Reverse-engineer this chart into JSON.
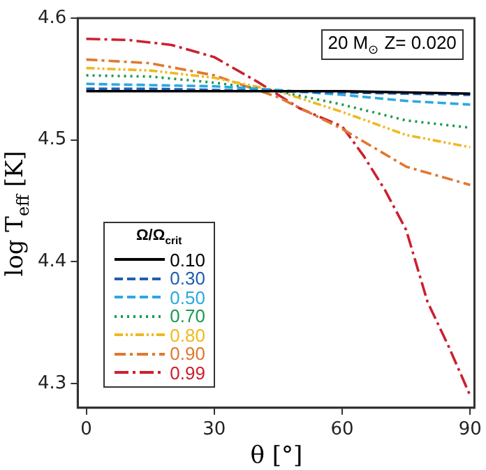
{
  "chart_data": {
    "type": "line",
    "xlabel": "θ [°]",
    "ylabel": "log T$_{eff}$ [K]",
    "legend_title": "Ω/Ω$_{crit}$",
    "legend": "bottom left",
    "annotations": [
      "20 M$_{⊙}$ Z= 0.020"
    ],
    "xlim": [
      -2,
      91
    ],
    "xticks": [
      0,
      30,
      60,
      90
    ],
    "ylim": [
      4.28,
      4.6
    ],
    "yticks": [
      4.3,
      4.4,
      4.5,
      4.6
    ],
    "grid": false,
    "marker": "none",
    "x": [
      0,
      15,
      30,
      45,
      60,
      75,
      90
    ],
    "series": [
      {
        "name": "0.10",
        "color": "#000000",
        "line_style": "solid",
        "values": [
          4.54,
          4.54,
          4.54,
          4.54,
          4.54,
          4.539,
          4.538
        ]
      },
      {
        "name": "0.30",
        "color": "#1f5fb0",
        "line_style": "dashed",
        "values": [
          4.542,
          4.542,
          4.541,
          4.54,
          4.539,
          4.538,
          4.537
        ]
      },
      {
        "name": "0.50",
        "color": "#29a9e0",
        "line_style": "dashed",
        "values": [
          4.546,
          4.545,
          4.544,
          4.541,
          4.537,
          4.532,
          4.529
        ]
      },
      {
        "name": "0.70",
        "color": "#1a9a50",
        "line_style": "dotted",
        "values": [
          4.553,
          4.552,
          4.547,
          4.54,
          4.529,
          4.516,
          4.51
        ]
      },
      {
        "name": "0.80",
        "color": "#f0b820",
        "line_style": "dashdotdot",
        "values": [
          4.559,
          4.557,
          4.551,
          4.54,
          4.523,
          4.504,
          4.494
        ]
      },
      {
        "name": "0.90",
        "color": "#e07830",
        "line_style": "dashdot",
        "values": [
          4.566,
          4.563,
          4.553,
          4.535,
          4.509,
          4.478,
          4.463
        ]
      },
      {
        "name": "0.99",
        "color": "#cc2030",
        "line_style": "longdashdot",
        "x": [
          0,
          10,
          20,
          30,
          40,
          45,
          50,
          60,
          65,
          70,
          75,
          80,
          85,
          90
        ],
        "values": [
          4.583,
          4.582,
          4.578,
          4.568,
          4.548,
          4.537,
          4.526,
          4.511,
          4.487,
          4.459,
          4.426,
          4.367,
          4.33,
          4.29
        ]
      }
    ]
  }
}
